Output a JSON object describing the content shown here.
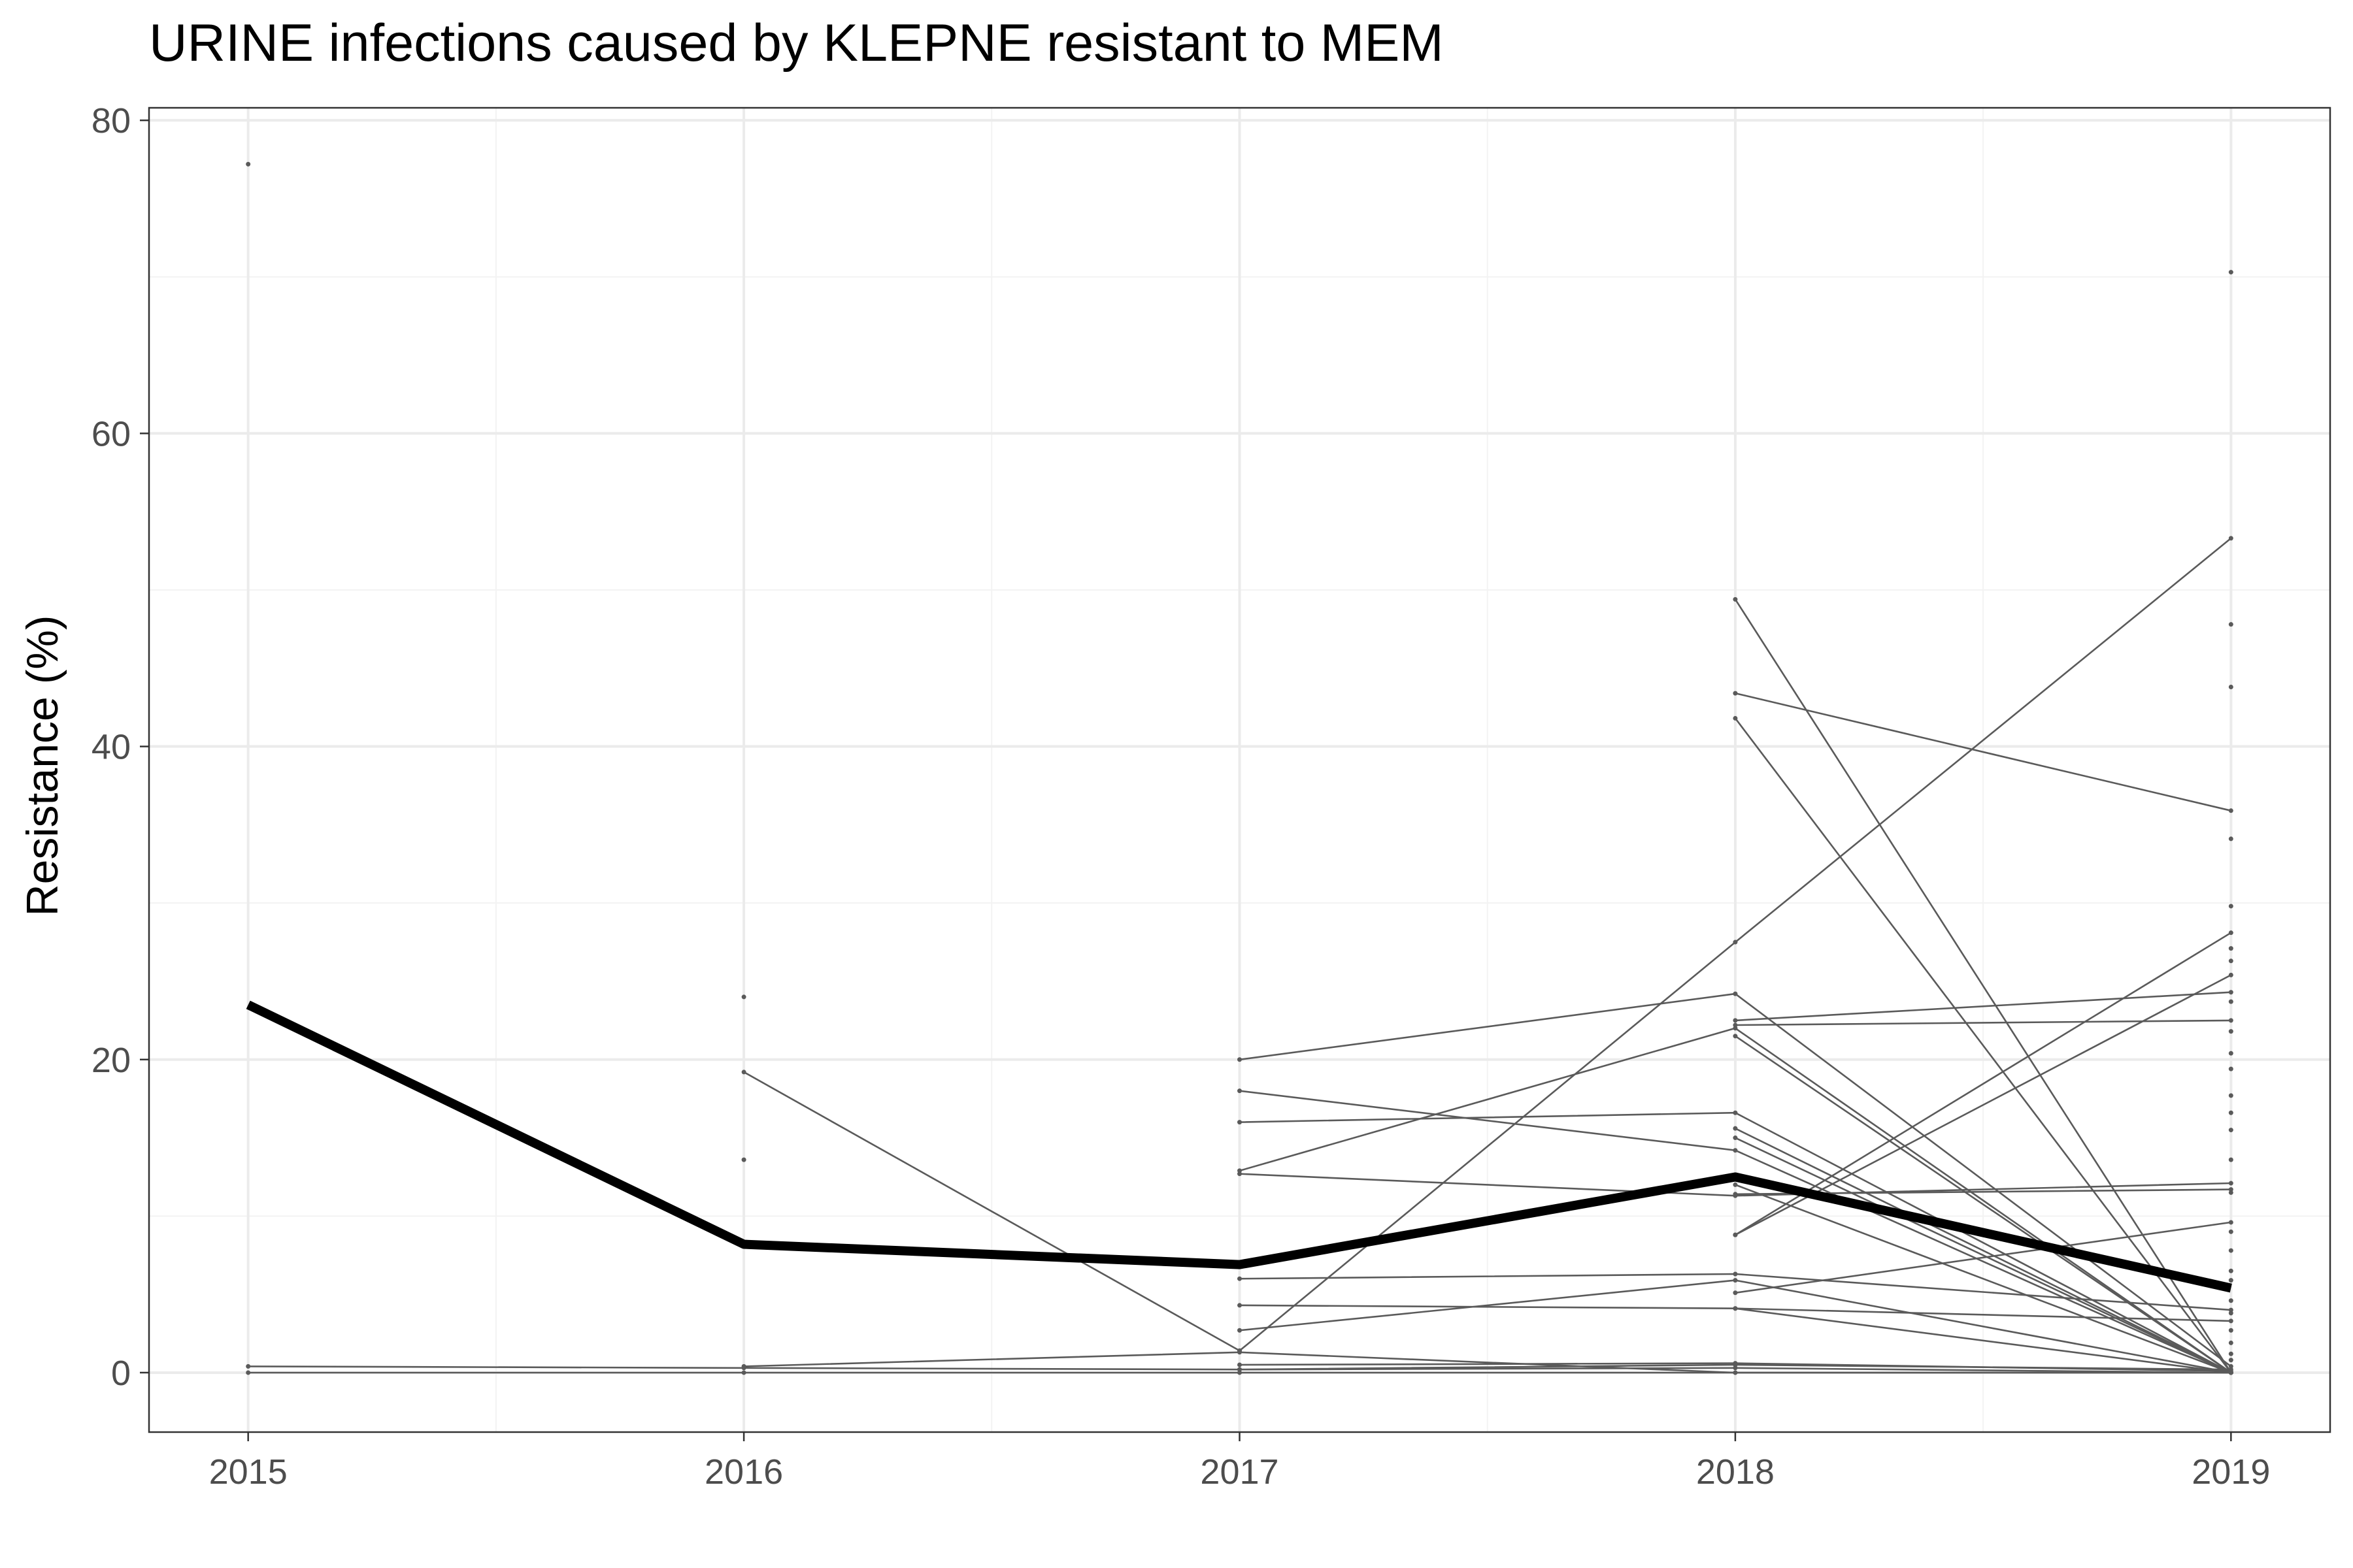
{
  "chart_data": {
    "type": "line",
    "title": "URINE infections caused by KLEPNE resistant to MEM",
    "xlabel": "",
    "ylabel": "Resistance (%)",
    "x": [
      2015,
      2016,
      2017,
      2018,
      2019
    ],
    "xlim": [
      2014.8,
      2019.2
    ],
    "ylim": [
      -3.8,
      80.8
    ],
    "x_ticks": [
      2015,
      2016,
      2017,
      2018,
      2019
    ],
    "y_ticks": [
      0,
      20,
      40,
      60,
      80
    ],
    "grid": true,
    "legend": "none",
    "colors": {
      "series": "#5a5a5a",
      "mean": "#000000",
      "grid_major": "#ebebeb",
      "grid_minor": "#f3f3f3",
      "panel_border": "#333333"
    },
    "mean_series": {
      "values": [
        23.5,
        8.2,
        6.9,
        12.5,
        5.4
      ]
    },
    "series": [
      {
        "values": [
          null,
          24.0,
          null,
          49.4,
          0.0
        ]
      },
      {
        "values": [
          null,
          19.2,
          1.4,
          null,
          0.0
        ]
      },
      {
        "values": [
          null,
          13.6,
          null,
          8.8,
          25.4
        ]
      },
      {
        "values": [
          0.4,
          0.3,
          0.2,
          0.5,
          0.2
        ]
      },
      {
        "values": [
          0.0,
          0.0,
          0.0,
          0.0,
          0.0
        ]
      },
      {
        "values": [
          null,
          0.4,
          1.3,
          0.0,
          0.0
        ]
      },
      {
        "values": [
          null,
          null,
          20.0,
          24.2,
          0.4
        ]
      },
      {
        "values": [
          null,
          null,
          18.0,
          14.2,
          0.0
        ]
      },
      {
        "values": [
          null,
          null,
          16.0,
          16.6,
          0.0
        ]
      },
      {
        "values": [
          null,
          null,
          12.9,
          22.0,
          0.0
        ]
      },
      {
        "values": [
          null,
          null,
          12.7,
          11.3,
          12.1
        ]
      },
      {
        "values": [
          null,
          null,
          6.0,
          6.3,
          4.0
        ]
      },
      {
        "values": [
          null,
          null,
          4.3,
          4.1,
          3.3
        ]
      },
      {
        "values": [
          null,
          null,
          2.7,
          5.9,
          0.0
        ]
      },
      {
        "values": [
          null,
          null,
          1.4,
          27.5,
          53.3
        ]
      },
      {
        "values": [
          null,
          null,
          0.5,
          0.6,
          0.1
        ]
      },
      {
        "values": [
          null,
          null,
          0.2,
          0.3,
          0.0
        ]
      },
      {
        "values": [
          null,
          null,
          null,
          43.4,
          35.9
        ]
      },
      {
        "values": [
          null,
          null,
          null,
          41.8,
          0.0
        ]
      },
      {
        "values": [
          null,
          null,
          null,
          22.5,
          24.3
        ]
      },
      {
        "values": [
          null,
          null,
          null,
          22.2,
          22.5
        ]
      },
      {
        "values": [
          null,
          null,
          null,
          21.5,
          0.0
        ]
      },
      {
        "values": [
          null,
          null,
          null,
          15.6,
          0.0
        ]
      },
      {
        "values": [
          null,
          null,
          null,
          15.0,
          0.0
        ]
      },
      {
        "values": [
          null,
          null,
          null,
          12.0,
          0.0
        ]
      },
      {
        "values": [
          null,
          null,
          null,
          11.4,
          11.7
        ]
      },
      {
        "values": [
          null,
          null,
          null,
          8.8,
          28.1
        ]
      },
      {
        "values": [
          null,
          null,
          null,
          5.1,
          9.6
        ]
      },
      {
        "values": [
          null,
          null,
          null,
          4.1,
          0.0
        ]
      },
      {
        "values": [
          77.2,
          null,
          null,
          null,
          null
        ]
      },
      {
        "values": [
          null,
          null,
          null,
          null,
          70.3
        ]
      }
    ],
    "isolated_points_2019": [
      47.8,
      43.8,
      34.1,
      29.8,
      27.1,
      26.3,
      23.7,
      21.8,
      20.4,
      19.4,
      17.7,
      16.6,
      15.5,
      13.6,
      11.5,
      9.0,
      7.8,
      6.5,
      5.9,
      4.6,
      3.8,
      2.7,
      1.9,
      1.2,
      0.8
    ]
  }
}
